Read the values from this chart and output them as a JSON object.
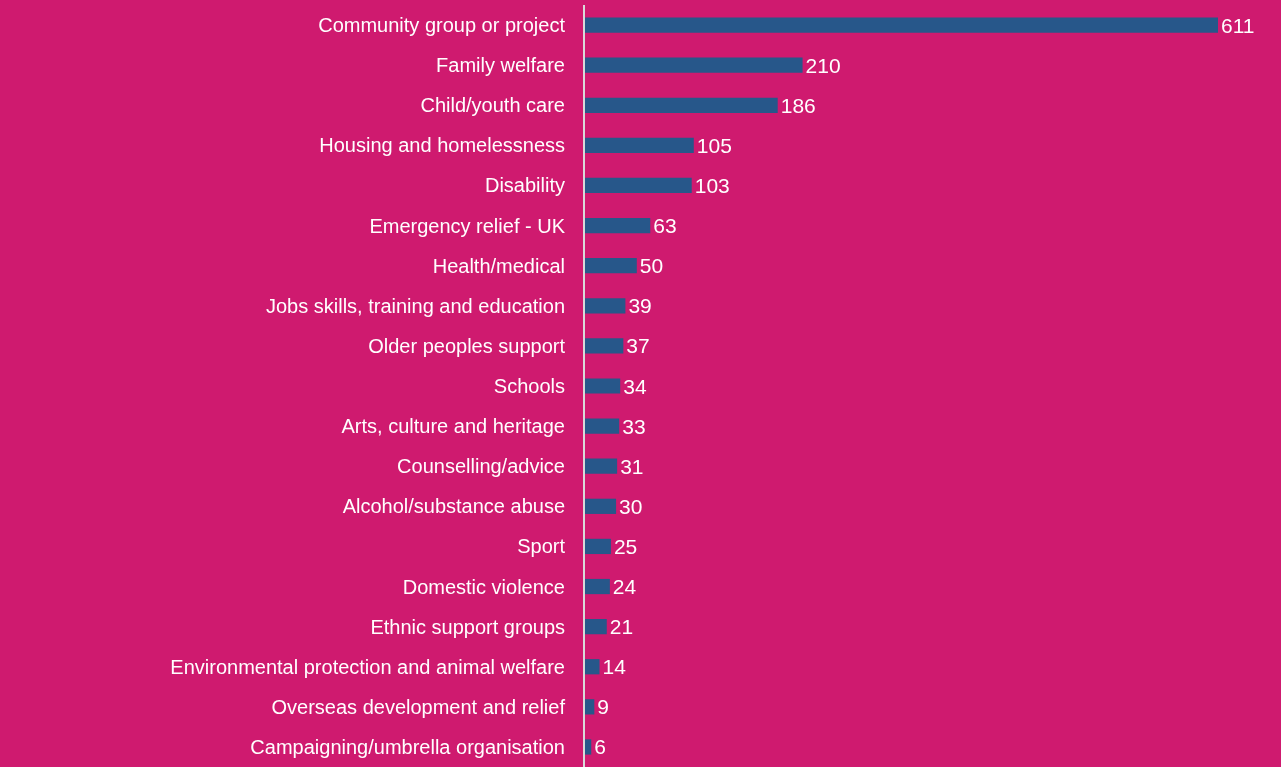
{
  "chart_data": {
    "type": "bar",
    "orientation": "horizontal",
    "categories": [
      "Community group or project",
      "Family welfare",
      "Child/youth care",
      "Housing and homelessness",
      "Disability",
      "Emergency relief - UK",
      "Health/medical",
      "Jobs skills, training and education",
      "Older peoples support",
      "Schools",
      "Arts, culture and heritage",
      "Counselling/advice",
      "Alcohol/substance abuse",
      "Sport",
      "Domestic violence",
      "Ethnic support groups",
      "Environmental protection and animal welfare",
      "Overseas development and relief",
      "Campaigning/umbrella organisation"
    ],
    "values": [
      611,
      210,
      186,
      105,
      103,
      63,
      50,
      39,
      37,
      34,
      33,
      31,
      30,
      25,
      24,
      21,
      14,
      9,
      6
    ],
    "color": "#27578a",
    "data_labels": true
  }
}
